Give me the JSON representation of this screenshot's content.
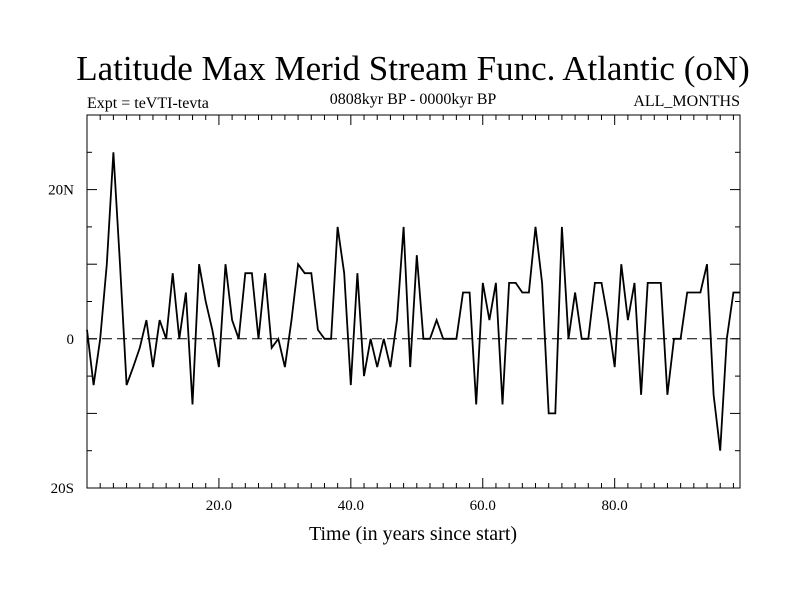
{
  "chart_data": {
    "type": "line",
    "title": "Latitude Max Merid Stream Func. Atlantic (oN)",
    "subtitle_left": "Expt = teVTI-tevta",
    "subtitle_center": "0808kyr BP - 0000kyr BP",
    "subtitle_right": "ALL_MONTHS",
    "xlabel": "Time (in years since start)",
    "ylabel": "",
    "xlim": [
      0,
      99
    ],
    "ylim": [
      -20,
      30
    ],
    "x_ticks": [
      20,
      40,
      60,
      80
    ],
    "x_tick_labels": [
      "20.0",
      "40.0",
      "60.0",
      "80.0"
    ],
    "y_ticks": [
      20,
      0,
      -20
    ],
    "y_tick_labels": [
      "20N",
      "0",
      "20S"
    ],
    "zero_line": "dashed",
    "series": [
      {
        "name": "Latitude Max Merid Stream Func",
        "x": [
          0,
          1,
          2,
          3,
          4,
          5,
          6,
          7,
          8,
          9,
          10,
          11,
          12,
          13,
          14,
          15,
          16,
          17,
          18,
          19,
          20,
          21,
          22,
          23,
          24,
          25,
          26,
          27,
          28,
          29,
          30,
          31,
          32,
          33,
          34,
          35,
          36,
          37,
          38,
          39,
          40,
          41,
          42,
          43,
          44,
          45,
          46,
          47,
          48,
          49,
          50,
          51,
          52,
          53,
          54,
          55,
          56,
          57,
          58,
          59,
          60,
          61,
          62,
          63,
          64,
          65,
          66,
          67,
          68,
          69,
          70,
          71,
          72,
          73,
          74,
          75,
          76,
          77,
          78,
          79,
          80,
          81,
          82,
          83,
          84,
          85,
          86,
          87,
          88,
          89,
          90,
          91,
          92,
          93,
          94,
          95,
          96,
          97,
          98,
          99
        ],
        "values": [
          1.2,
          -6.2,
          0,
          10,
          25,
          10,
          -6.2,
          -3.8,
          -1.2,
          2.5,
          -3.8,
          2.5,
          0,
          8.8,
          0,
          6.2,
          -8.8,
          10,
          5,
          1.2,
          -3.8,
          10,
          2.5,
          0,
          8.8,
          8.8,
          0,
          8.8,
          -1.2,
          0,
          -3.8,
          2.5,
          10,
          8.8,
          8.8,
          1.2,
          0,
          0,
          15,
          8.8,
          -6.2,
          8.8,
          -5,
          0,
          -3.8,
          0,
          -3.8,
          2.5,
          15,
          -3.8,
          11.2,
          0,
          0,
          2.5,
          0,
          0,
          0,
          6.2,
          6.2,
          -8.8,
          7.5,
          2.5,
          7.5,
          -8.8,
          7.5,
          7.5,
          6.2,
          6.2,
          15,
          7.5,
          -10,
          -10,
          15,
          0,
          6.2,
          0,
          0,
          7.5,
          7.5,
          2.5,
          -3.8,
          10,
          2.5,
          7.5,
          -7.5,
          7.5,
          7.5,
          7.5,
          -7.5,
          0,
          0,
          6.2,
          6.2,
          6.2,
          10,
          -7.5,
          -15,
          0,
          6.2,
          6.2
        ]
      }
    ]
  }
}
